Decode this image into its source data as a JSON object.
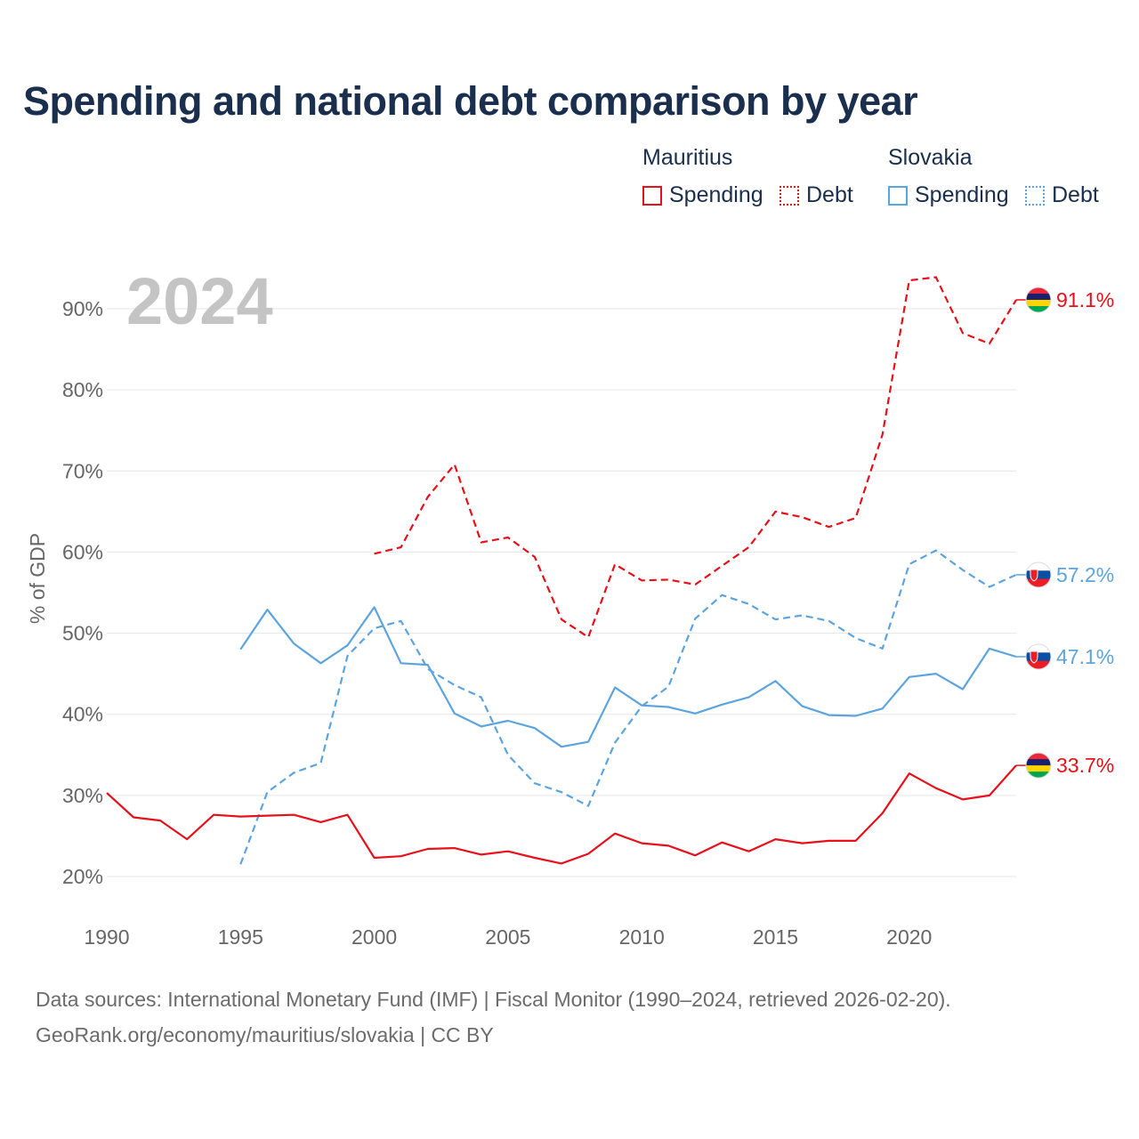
{
  "header": {
    "title": "Spending and national debt comparison by year"
  },
  "legend": {
    "groups": [
      {
        "country": "Mauritius",
        "spending_label": "Spending",
        "debt_label": "Debt",
        "color": "#e8101a"
      },
      {
        "country": "Slovakia",
        "spending_label": "Spending",
        "debt_label": "Debt",
        "color": "#5ca4e0"
      }
    ]
  },
  "footer": {
    "line1": "Data sources: International Monetary Fund (IMF) | Fiscal Monitor (1990–2024, retrieved 2026-02-20).",
    "line2": "GeoRank.org/economy/mauritius/slovakia | CC BY"
  },
  "chart_data": {
    "type": "line",
    "year_label": "2024",
    "ylabel": "% of GDP",
    "xlim": [
      1990,
      2024
    ],
    "ylim": [
      15,
      97
    ],
    "x_ticks": [
      1990,
      1995,
      2000,
      2005,
      2010,
      2015,
      2020
    ],
    "x_tick_labels": [
      "1990",
      "1995",
      "2000",
      "2005",
      "2010",
      "2015",
      "2020"
    ],
    "y_ticks": [
      20,
      30,
      40,
      50,
      60,
      70,
      80,
      90
    ],
    "y_tick_labels": [
      "20%",
      "30%",
      "40%",
      "50%",
      "60%",
      "70%",
      "80%",
      "90%"
    ],
    "grid": true,
    "series": [
      {
        "name": "Mauritius Debt",
        "country": "Mauritius",
        "metric": "Debt",
        "color": "#e8101a",
        "dash": "dashed",
        "end_label": "91.1%",
        "flag": "mauritius",
        "x": [
          2000,
          2001,
          2002,
          2003,
          2004,
          2005,
          2006,
          2007,
          2008,
          2009,
          2010,
          2011,
          2012,
          2013,
          2014,
          2015,
          2016,
          2017,
          2018,
          2019,
          2020,
          2021,
          2022,
          2023,
          2024
        ],
        "values": [
          59.8,
          60.6,
          66.8,
          70.8,
          61.2,
          61.8,
          59.4,
          51.7,
          49.5,
          58.5,
          56.5,
          56.6,
          56.0,
          58.3,
          60.6,
          65.0,
          64.3,
          63.1,
          64.2,
          74.5,
          93.5,
          93.9,
          87.0,
          85.7,
          91.1
        ]
      },
      {
        "name": "Slovakia Debt",
        "country": "Slovakia",
        "metric": "Debt",
        "color": "#5ca4e0",
        "dash": "dashed",
        "end_label": "57.2%",
        "flag": "slovakia",
        "x": [
          1995,
          1996,
          1997,
          1998,
          1999,
          2000,
          2001,
          2002,
          2003,
          2004,
          2005,
          2006,
          2007,
          2008,
          2009,
          2010,
          2011,
          2012,
          2013,
          2014,
          2015,
          2016,
          2017,
          2018,
          2019,
          2020,
          2021,
          2022,
          2023,
          2024
        ],
        "values": [
          21.5,
          30.4,
          32.8,
          34.0,
          47.2,
          50.6,
          51.5,
          45.6,
          43.6,
          42.1,
          35.0,
          31.5,
          30.4,
          28.7,
          36.5,
          41.0,
          43.4,
          51.8,
          54.7,
          53.6,
          51.7,
          52.2,
          51.5,
          49.4,
          48.1,
          58.5,
          60.2,
          57.8,
          55.7,
          57.2
        ]
      },
      {
        "name": "Slovakia Spending",
        "country": "Slovakia",
        "metric": "Spending",
        "color": "#5ca4e0",
        "dash": "solid",
        "end_label": "47.1%",
        "flag": "slovakia",
        "x": [
          1995,
          1996,
          1997,
          1998,
          1999,
          2000,
          2001,
          2002,
          2003,
          2004,
          2005,
          2006,
          2007,
          2008,
          2009,
          2010,
          2011,
          2012,
          2013,
          2014,
          2015,
          2016,
          2017,
          2018,
          2019,
          2020,
          2021,
          2022,
          2023,
          2024
        ],
        "values": [
          48.0,
          52.9,
          48.7,
          46.3,
          48.5,
          53.2,
          46.3,
          46.1,
          40.1,
          38.5,
          39.2,
          38.3,
          36.0,
          36.6,
          43.3,
          41.1,
          40.9,
          40.1,
          41.2,
          42.1,
          44.1,
          41.0,
          39.9,
          39.8,
          40.7,
          44.6,
          45.0,
          43.1,
          48.1,
          47.1
        ]
      },
      {
        "name": "Mauritius Spending",
        "country": "Mauritius",
        "metric": "Spending",
        "color": "#e8101a",
        "dash": "solid",
        "end_label": "33.7%",
        "flag": "mauritius",
        "x": [
          1990,
          1991,
          1992,
          1993,
          1994,
          1995,
          1996,
          1997,
          1998,
          1999,
          2000,
          2001,
          2002,
          2003,
          2004,
          2005,
          2006,
          2007,
          2008,
          2009,
          2010,
          2011,
          2012,
          2013,
          2014,
          2015,
          2016,
          2017,
          2018,
          2019,
          2020,
          2021,
          2022,
          2023,
          2024
        ],
        "values": [
          30.3,
          27.3,
          26.9,
          24.6,
          27.6,
          27.4,
          27.5,
          27.6,
          26.7,
          27.6,
          22.3,
          22.5,
          23.4,
          23.5,
          22.7,
          23.1,
          22.3,
          21.6,
          22.8,
          25.3,
          24.1,
          23.8,
          22.6,
          24.2,
          23.1,
          24.6,
          24.1,
          24.4,
          24.4,
          27.8,
          32.7,
          30.9,
          29.5,
          30.0,
          33.7
        ]
      }
    ]
  }
}
